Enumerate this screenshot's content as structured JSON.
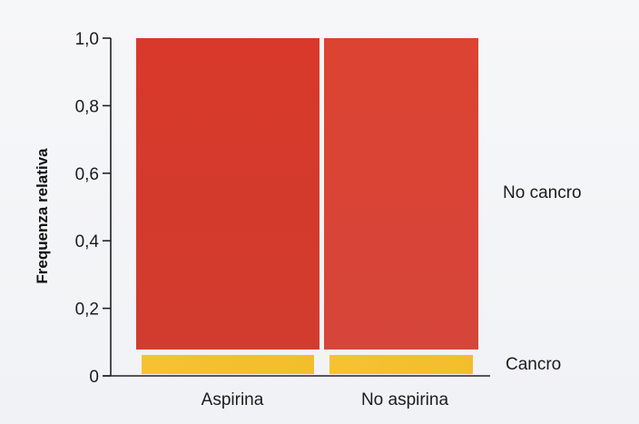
{
  "chart_data": {
    "type": "bar",
    "subtype": "stacked-mosaic",
    "title": "",
    "ylabel": "Frequenza relativa",
    "xlabel": "",
    "ylim": [
      0,
      1.0
    ],
    "yticks": [
      0,
      0.2,
      0.4,
      0.6,
      0.8,
      1.0
    ],
    "ytick_labels": [
      "0",
      "0,2",
      "0,4",
      "0,6",
      "0,8",
      "1,0"
    ],
    "categories": [
      "Aspirina",
      "No aspirina"
    ],
    "series": [
      {
        "name": "Cancro",
        "values": [
          0.07,
          0.07
        ],
        "color": "#f5c032"
      },
      {
        "name": "No cancro",
        "values": [
          0.93,
          0.93
        ],
        "color": "#d93a2b"
      }
    ],
    "grid": false,
    "legend": "right"
  }
}
